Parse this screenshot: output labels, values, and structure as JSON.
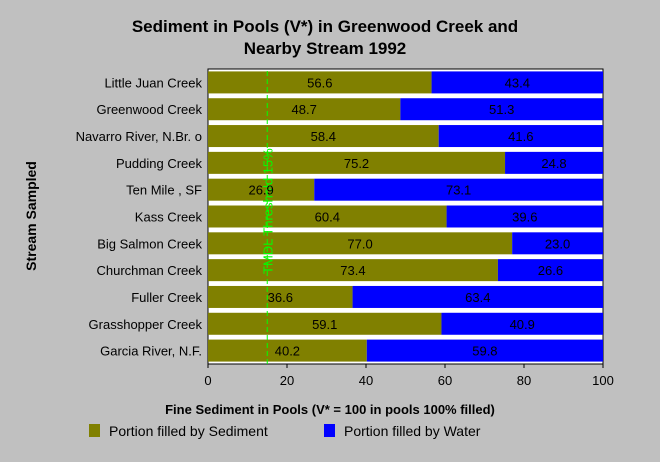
{
  "chart_data": {
    "type": "bar",
    "orientation": "horizontal",
    "stacked": true,
    "title_line1": "Sediment in Pools (V*) in Greenwood Creek and",
    "title_line2": "Nearby Stream 1992",
    "xlabel": "Fine Sediment in Pools (V* = 100 in pools 100% filled)",
    "ylabel": "Stream Sampled",
    "xlim": [
      0,
      100
    ],
    "xticks": [
      "0",
      "20",
      "40",
      "60",
      "80",
      "100"
    ],
    "grid": false,
    "categories": [
      "Little Juan Creek",
      "Greenwood Creek",
      "Navarro River, N.Br. o",
      "Pudding Creek",
      "Ten Mile , SF",
      "Kass Creek",
      "Big Salmon Creek",
      "Churchman Creek",
      "Fuller Creek",
      "Grasshopper Creek",
      "Garcia River, N.F."
    ],
    "series": [
      {
        "name": "Portion filled by Sediment",
        "color": "#808000",
        "values": [
          56.6,
          48.7,
          58.4,
          75.2,
          26.9,
          60.4,
          77.0,
          73.4,
          36.6,
          59.1,
          40.2
        ],
        "labels": [
          "56.6",
          "48.7",
          "58.4",
          "75.2",
          "26.9",
          "60.4",
          "77.0",
          "73.4",
          "36.6",
          "59.1",
          "40.2"
        ]
      },
      {
        "name": "Portion filled by Water",
        "color": "#0000ff",
        "values": [
          43.4,
          51.3,
          41.6,
          24.8,
          73.1,
          39.6,
          23.0,
          26.6,
          63.4,
          40.9,
          59.8
        ],
        "labels": [
          "43.4",
          "51.3",
          "41.6",
          "24.8",
          "73.1",
          "39.6",
          "23.0",
          "26.6",
          "63.4",
          "40.9",
          "59.8"
        ]
      }
    ],
    "threshold": {
      "value": 15,
      "label": "TMDL Threshold 15%",
      "color": "#00ff00"
    },
    "legend_position": "bottom"
  }
}
